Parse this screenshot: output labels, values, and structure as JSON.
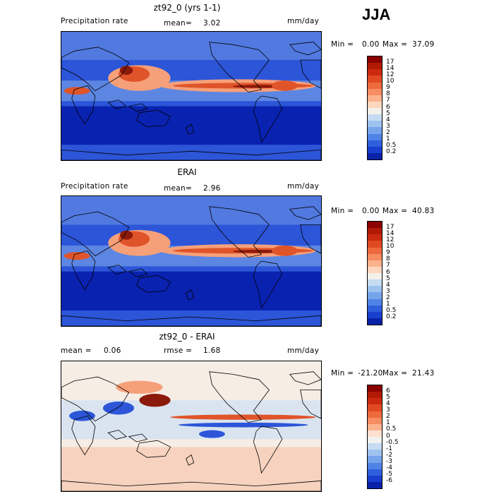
{
  "season": "JJA",
  "panels": [
    {
      "title": "zt92_0 (yrs 1-1)",
      "left_label": "Precipitation rate",
      "center_label": "mean=",
      "center_value": "3.02",
      "units": "mm/day",
      "min_label": "Min =",
      "min_value": "0.00",
      "max_label": "Max =",
      "max_value": "37.09",
      "colorbar_ticks": [
        "17",
        "14",
        "12",
        "10",
        "9",
        "8",
        "7",
        "6",
        "5",
        "4",
        "3",
        "2",
        "1",
        "0.5",
        "0.2"
      ],
      "colorbar_colors": [
        "#8b0000",
        "#b01a05",
        "#cc2a10",
        "#e04a22",
        "#ee6a3e",
        "#f78d62",
        "#fbb28e",
        "#fdd7bd",
        "#f4f0ea",
        "#c6dcf2",
        "#9fc3ef",
        "#76a4ec",
        "#4f83e6",
        "#2e5fdc",
        "#1a3fce",
        "#0a22a8"
      ]
    },
    {
      "title": "ERAI",
      "left_label": "Precipitation rate",
      "center_label": "mean=",
      "center_value": "2.96",
      "units": "mm/day",
      "min_label": "Min =",
      "min_value": "0.00",
      "max_label": "Max =",
      "max_value": "40.83",
      "colorbar_ticks": [
        "17",
        "14",
        "12",
        "10",
        "9",
        "8",
        "7",
        "6",
        "5",
        "4",
        "3",
        "2",
        "1",
        "0.5",
        "0.2"
      ],
      "colorbar_colors": [
        "#8b0000",
        "#b01a05",
        "#cc2a10",
        "#e04a22",
        "#ee6a3e",
        "#f78d62",
        "#fbb28e",
        "#fdd7bd",
        "#f4f0ea",
        "#c6dcf2",
        "#9fc3ef",
        "#76a4ec",
        "#4f83e6",
        "#2e5fdc",
        "#1a3fce",
        "#0a22a8"
      ]
    },
    {
      "title": "zt92_0 - ERAI",
      "left_label": "mean =",
      "left_value": "0.06",
      "center_label": "rmse =",
      "center_value": "1.68",
      "units": "mm/day",
      "min_label": "Min =",
      "min_value": "-21.20",
      "max_label": "Max =",
      "max_value": "21.43",
      "colorbar_ticks": [
        "6",
        "5",
        "4",
        "3",
        "2",
        "1",
        "0.5",
        "0",
        "-0.5",
        "-1",
        "-2",
        "-3",
        "-4",
        "-5",
        "-6"
      ],
      "colorbar_colors": [
        "#8b0000",
        "#b01a05",
        "#cc2a10",
        "#e04a22",
        "#ee6a3e",
        "#f78d62",
        "#fbb28e",
        "#fde0d0",
        "#f4f2f0",
        "#c6dcf2",
        "#9fc3ef",
        "#76a4ec",
        "#4f83e6",
        "#2e5fdc",
        "#1a3fce",
        "#0a22a8"
      ]
    }
  ],
  "map_colors": {
    "wet_dark": "#8b1a0a",
    "wet": "#e0542a",
    "wet_light": "#f6a07a",
    "dry_dark": "#0a22b0",
    "dry": "#2c55d8",
    "dry_light": "#7fa6ea",
    "neutral": "#f6ede4",
    "pale_blue": "#cfe0f4",
    "coast": "#000000"
  }
}
